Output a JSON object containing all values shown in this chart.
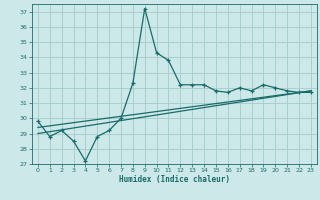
{
  "xlabel": "Humidex (Indice chaleur)",
  "background_color": "#cce8e8",
  "grid_color": "#aacece",
  "line_color": "#1a6b6b",
  "xlim": [
    -0.5,
    23.5
  ],
  "ylim": [
    27,
    37.5
  ],
  "yticks": [
    27,
    28,
    29,
    30,
    31,
    32,
    33,
    34,
    35,
    36,
    37
  ],
  "xticks": [
    0,
    1,
    2,
    3,
    4,
    5,
    6,
    7,
    8,
    9,
    10,
    11,
    12,
    13,
    14,
    15,
    16,
    17,
    18,
    19,
    20,
    21,
    22,
    23
  ],
  "line1_x": [
    0,
    1,
    2,
    3,
    4,
    5,
    6,
    7,
    8,
    9,
    10,
    11,
    12,
    13,
    14,
    15,
    16,
    17,
    18,
    19,
    20,
    21,
    22,
    23
  ],
  "line1_y": [
    29.8,
    28.8,
    29.2,
    28.5,
    27.2,
    28.8,
    29.2,
    30.0,
    32.3,
    37.2,
    34.3,
    33.8,
    32.2,
    32.2,
    32.2,
    31.8,
    31.7,
    32.0,
    31.8,
    32.2,
    32.0,
    31.8,
    31.7,
    31.7
  ],
  "line2_x": [
    0,
    23
  ],
  "line2_y": [
    29.0,
    31.8
  ],
  "line3_x": [
    0,
    23
  ],
  "line3_y": [
    29.4,
    31.8
  ]
}
